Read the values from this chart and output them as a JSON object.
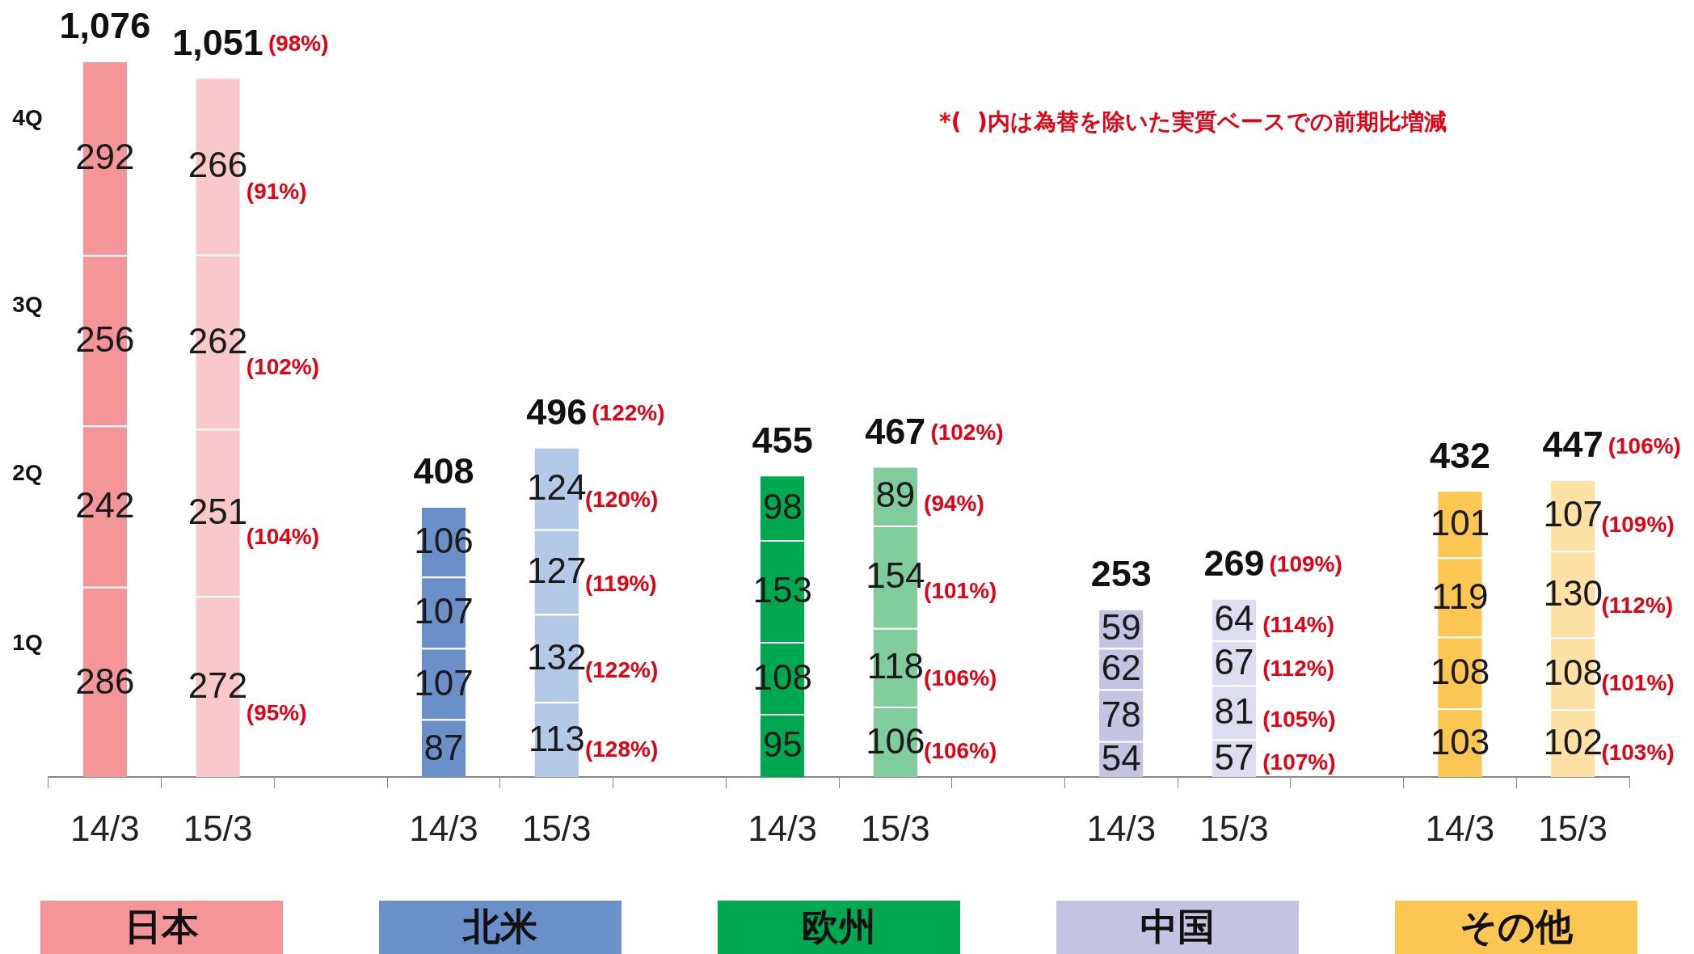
{
  "chart_data": {
    "type": "bar",
    "stacked": true,
    "data_labels": true,
    "categories": [
      "14/3",
      "15/3",
      null,
      "14/3",
      "15/3",
      null,
      "14/3",
      "15/3",
      null,
      "14/3",
      "15/3",
      null,
      "14/3",
      "15/3"
    ],
    "series": [
      {
        "name": "1Q",
        "values": [
          286,
          272,
          null,
          87,
          113,
          null,
          95,
          106,
          null,
          54,
          57,
          null,
          103,
          102
        ],
        "colors": [
          "#f4959a",
          "#f9c8cb",
          null,
          "#6b8fc9",
          "#b4c9e8",
          null,
          "#00a84f",
          "#80cc9c",
          null,
          "#c4c3e2",
          "#dedcf0",
          null,
          "#fcc653",
          "#fde1a4"
        ]
      },
      {
        "name": "2Q",
        "values": [
          242,
          251,
          null,
          107,
          132,
          null,
          108,
          118,
          null,
          78,
          81,
          null,
          108,
          108
        ],
        "colors": [
          "#f4959a",
          "#f9c8cb",
          null,
          "#6b8fc9",
          "#b4c9e8",
          null,
          "#00a84f",
          "#80cc9c",
          null,
          "#c4c3e2",
          "#dedcf0",
          null,
          "#fcc653",
          "#fde1a4"
        ]
      },
      {
        "name": "3Q",
        "values": [
          256,
          262,
          null,
          107,
          127,
          null,
          153,
          154,
          null,
          62,
          67,
          null,
          119,
          130
        ],
        "colors": [
          "#f4959a",
          "#f9c8cb",
          null,
          "#6b8fc9",
          "#b4c9e8",
          null,
          "#00a84f",
          "#80cc9c",
          null,
          "#c4c3e2",
          "#dedcf0",
          null,
          "#fcc653",
          "#fde1a4"
        ]
      },
      {
        "name": "4Q",
        "values": [
          292,
          266,
          null,
          106,
          124,
          null,
          98,
          89,
          null,
          59,
          64,
          null,
          101,
          107
        ],
        "colors": [
          "#f4959a",
          "#f9c8cb",
          null,
          "#6b8fc9",
          "#b4c9e8",
          null,
          "#00a84f",
          "#80cc9c",
          null,
          "#c4c3e2",
          "#dedcf0",
          null,
          "#fcc653",
          "#fde1a4"
        ]
      }
    ],
    "totals": [
      "1,076",
      "1,051",
      null,
      "408",
      "496",
      null,
      "455",
      "467",
      null,
      "253",
      "269",
      null,
      "432",
      "447"
    ],
    "legend": false,
    "annotations": [
      "*(  )内は為替を除いた実質ベースでの前期比増減",
      "日本",
      "北米",
      "欧州",
      "中国",
      "その他",
      "(98%)",
      "(91%)",
      "(102%)",
      "(104%)",
      "(95%)",
      "(122%)",
      "(120%)",
      "(119%)",
      "(122%)",
      "(128%)",
      "(102%)",
      "(94%)",
      "(101%)",
      "(106%)",
      "(106%)",
      "(109%)",
      "(114%)",
      "(112%)",
      "(105%)",
      "(107%)",
      "(106%)",
      "(109%)",
      "(112%)",
      "(101%)",
      "(103%)"
    ]
  }
}
